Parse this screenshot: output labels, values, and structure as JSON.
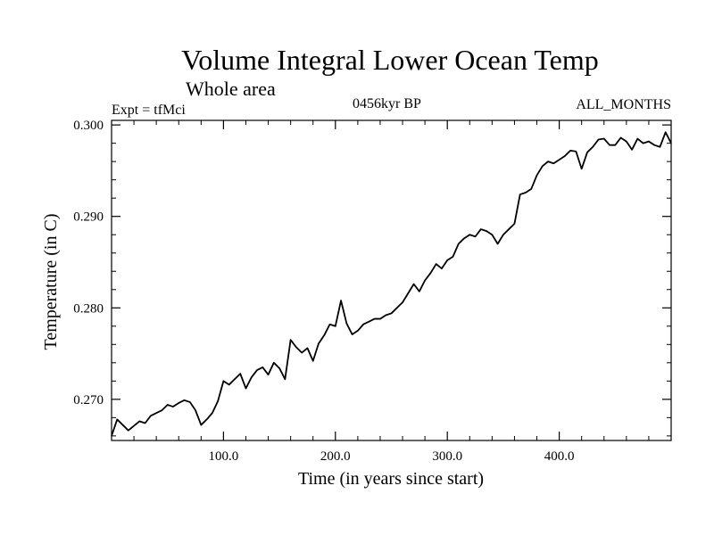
{
  "chart_data": {
    "type": "line",
    "title": "Volume Integral Lower Ocean Temp",
    "subtitle": "Whole area",
    "expt": "Expt = tfMci",
    "period": "0456kyr BP",
    "months": "ALL_MONTHS",
    "xlabel": "Time (in years since start)",
    "ylabel": "Temperature (in C)",
    "xlim": [
      0,
      500
    ],
    "ylim": [
      0.2655,
      0.3005
    ],
    "x_ticks": [
      100,
      200,
      300,
      400
    ],
    "x_tick_labels": [
      "100.0",
      "200.0",
      "300.0",
      "400.0"
    ],
    "y_ticks": [
      0.27,
      0.28,
      0.29,
      0.3
    ],
    "y_tick_labels": [
      "0.270",
      "0.280",
      "0.290",
      "0.300"
    ],
    "grid": false,
    "line_color": "#000000",
    "series": [
      {
        "x": [
          0,
          5,
          10,
          15,
          20,
          25,
          30,
          35,
          40,
          45,
          50,
          55,
          60,
          65,
          70,
          75,
          80,
          85,
          90,
          95,
          100,
          105,
          110,
          115,
          120,
          125,
          130,
          135,
          140,
          145,
          150,
          155,
          160,
          165,
          170,
          175,
          180,
          185,
          190,
          195,
          200,
          205,
          210,
          215,
          220,
          225,
          230,
          235,
          240,
          245,
          250,
          255,
          260,
          265,
          270,
          275,
          280,
          285,
          290,
          295,
          300,
          305,
          310,
          315,
          320,
          325,
          330,
          335,
          340,
          345,
          350,
          355,
          360,
          365,
          370,
          375,
          380,
          385,
          390,
          395,
          400,
          405,
          410,
          415,
          420,
          425,
          430,
          435,
          440,
          445,
          450,
          455,
          460,
          465,
          470,
          475,
          480,
          485,
          490,
          495,
          500
        ],
        "y": [
          0.266,
          0.2678,
          0.2672,
          0.2666,
          0.2671,
          0.2676,
          0.2674,
          0.2682,
          0.2685,
          0.2688,
          0.2694,
          0.2692,
          0.2696,
          0.2699,
          0.2697,
          0.2688,
          0.2672,
          0.2678,
          0.2685,
          0.2698,
          0.272,
          0.2716,
          0.2722,
          0.2728,
          0.2712,
          0.2724,
          0.2732,
          0.2735,
          0.2727,
          0.274,
          0.2734,
          0.2722,
          0.2765,
          0.2757,
          0.2751,
          0.2756,
          0.2742,
          0.2761,
          0.277,
          0.2782,
          0.278,
          0.2808,
          0.2783,
          0.2771,
          0.2775,
          0.2782,
          0.2785,
          0.2788,
          0.2788,
          0.2792,
          0.2794,
          0.28,
          0.2806,
          0.2816,
          0.2826,
          0.2818,
          0.283,
          0.2838,
          0.2848,
          0.2843,
          0.2852,
          0.2856,
          0.287,
          0.2876,
          0.288,
          0.2878,
          0.2886,
          0.2884,
          0.288,
          0.287,
          0.288,
          0.2886,
          0.2892,
          0.2924,
          0.2926,
          0.293,
          0.2945,
          0.2955,
          0.296,
          0.2958,
          0.2962,
          0.2966,
          0.2972,
          0.2971,
          0.2952,
          0.297,
          0.2976,
          0.2984,
          0.2985,
          0.2978,
          0.2978,
          0.2986,
          0.2982,
          0.2973,
          0.2985,
          0.298,
          0.2982,
          0.2978,
          0.2976,
          0.2992,
          0.298
        ]
      }
    ]
  }
}
